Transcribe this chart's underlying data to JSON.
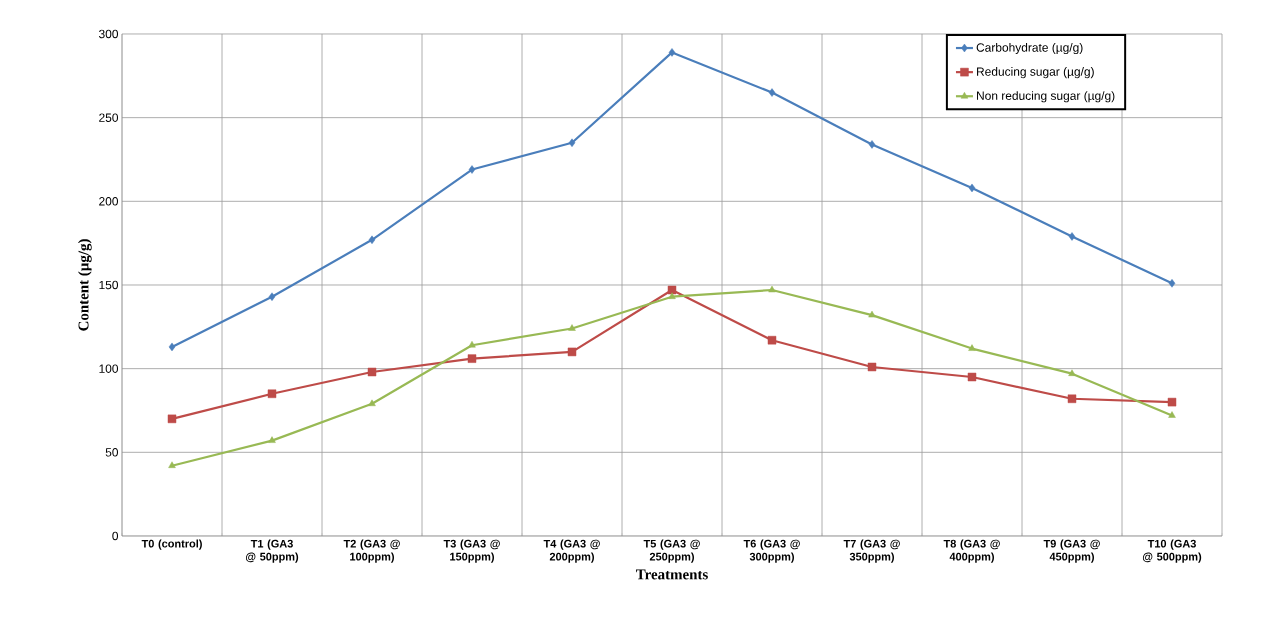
{
  "chart_data": {
    "type": "line",
    "xlabel": "Treatments",
    "ylabel": "Content (µg/g)",
    "categories": [
      "T0 (control)",
      "T1 (GA3 @ 50ppm)",
      "T2 (GA3 @ 100ppm)",
      "T3 (GA3 @ 150ppm)",
      "T4 (GA3 @ 200ppm)",
      "T5 (GA3 @ 250ppm)",
      "T6 (GA3 @ 300ppm)",
      "T7 (GA3 @ 350ppm)",
      "T8 (GA3 @ 400ppm)",
      "T9 (GA3 @ 450ppm)",
      "T10 (GA3 @ 500ppm)"
    ],
    "series": [
      {
        "name": "Carbohydrate  (µg/g)",
        "color": "#4a7ebb",
        "marker": "diamond",
        "values": [
          113,
          143,
          177,
          219,
          235,
          289,
          265,
          234,
          208,
          179,
          151
        ]
      },
      {
        "name": "Reducing sugar (µg/g)",
        "color": "#be4b48",
        "marker": "square",
        "values": [
          70,
          85,
          98,
          106,
          110,
          147,
          117,
          101,
          95,
          82,
          80
        ]
      },
      {
        "name": "Non reducing sugar (µg/g)",
        "color": "#98b954",
        "marker": "triangle",
        "values": [
          42,
          57,
          79,
          114,
          124,
          143,
          147,
          132,
          112,
          97,
          72
        ]
      }
    ],
    "ylim": [
      0,
      300
    ],
    "yticks": [
      0,
      50,
      100,
      150,
      200,
      250,
      300
    ],
    "grid": true,
    "legend": "top right",
    "line_style": "solid"
  }
}
